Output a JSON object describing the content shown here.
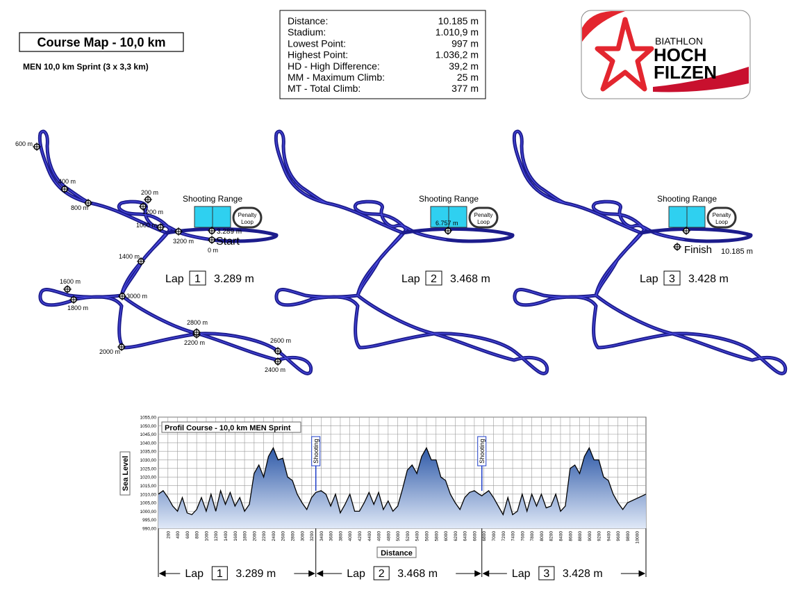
{
  "header": {
    "title": "Course Map - 10,0 km",
    "subtitle": "MEN 10,0 km Sprint (3 x 3,3 km)"
  },
  "stats": [
    [
      "Distance:",
      "10.185 m"
    ],
    [
      "Stadium:",
      "1.010,9 m"
    ],
    [
      "Lowest Point:",
      "997 m"
    ],
    [
      "Highest Point:",
      "1.036,2 m"
    ],
    [
      "HD - High Difference:",
      "39,2 m"
    ],
    [
      "MM - Maximum Climb:",
      "25 m"
    ],
    [
      "MT - Total Climb:",
      "377 m"
    ]
  ],
  "logo": {
    "line1": "BIATHLON",
    "line2": "HOCH",
    "line3": "FILZEN"
  },
  "maps": [
    {
      "range": "Shooting Range",
      "penalty": [
        "Penalty",
        "Loop"
      ],
      "lap": "Lap",
      "lap_number": "1",
      "lap_length": "3.289 m",
      "marks": [
        "600 m",
        "400 m",
        "800 m",
        "200 m",
        "1200 m",
        "1000 m",
        "3200 m",
        "3.289 m",
        "Start",
        "0 m",
        "1400 m",
        "1600 m",
        "1800 m",
        "3000 m",
        "2800 m",
        "2200 m",
        "2000 m",
        "2600 m",
        "2400 m"
      ]
    },
    {
      "range": "Shooting Range",
      "penalty": [
        "Penalty",
        "Loop"
      ],
      "lap": "Lap",
      "lap_number": "2",
      "lap_length": "3.468 m",
      "marks": [
        "6.757 m"
      ]
    },
    {
      "range": "Shooting Range",
      "penalty": [
        "Penalty",
        "Loop"
      ],
      "lap": "Lap",
      "lap_number": "3",
      "lap_length": "3.428 m",
      "marks": [
        "Finish",
        "10.185 m"
      ]
    }
  ],
  "chart_data": {
    "type": "area",
    "title": "Profil Course - 10,0 km MEN Sprint",
    "x_label": "Distance",
    "y_label": "Sea Level",
    "color": "#2f5aa8",
    "x": [
      0,
      100,
      200,
      300,
      400,
      500,
      600,
      700,
      800,
      900,
      1000,
      1100,
      1200,
      1300,
      1400,
      1500,
      1600,
      1700,
      1800,
      1900,
      2000,
      2100,
      2200,
      2300,
      2400,
      2500,
      2600,
      2700,
      2800,
      2900,
      3000,
      3100,
      3200,
      3289,
      3400,
      3500,
      3600,
      3700,
      3800,
      3900,
      4000,
      4100,
      4200,
      4300,
      4400,
      4500,
      4600,
      4700,
      4800,
      4900,
      5000,
      5100,
      5200,
      5300,
      5400,
      5500,
      5600,
      5700,
      5800,
      5900,
      6000,
      6100,
      6200,
      6300,
      6400,
      6500,
      6600,
      6700,
      6757,
      6800,
      6900,
      7000,
      7100,
      7200,
      7300,
      7400,
      7500,
      7600,
      7700,
      7800,
      7900,
      8000,
      8100,
      8200,
      8300,
      8400,
      8500,
      8600,
      8700,
      8800,
      8900,
      9000,
      9100,
      9200,
      9300,
      9400,
      9500,
      9600,
      9700,
      9800,
      10185
    ],
    "values": [
      1010,
      1012,
      1008,
      1003,
      1000,
      1008,
      999,
      998,
      1001,
      1008,
      1000,
      1010,
      1000,
      1012,
      1004,
      1011,
      1003,
      1008,
      1000,
      1004,
      1022,
      1027,
      1020,
      1032,
      1037,
      1030,
      1031,
      1020,
      1018,
      1010,
      1005,
      1001,
      1008,
      1011,
      1012,
      1010,
      1003,
      1010,
      999,
      1004,
      1010,
      1000,
      1000,
      1005,
      1011,
      1004,
      1011,
      1001,
      1006,
      1000,
      1003,
      1013,
      1024,
      1027,
      1022,
      1032,
      1037,
      1030,
      1030,
      1020,
      1018,
      1010,
      1005,
      1001,
      1008,
      1011,
      1012,
      1010,
      1009,
      1010,
      1012,
      1008,
      1003,
      998,
      1008,
      998,
      1000,
      1010,
      1000,
      1010,
      1003,
      1010,
      1002,
      1003,
      1010,
      1000,
      1003,
      1025,
      1027,
      1022,
      1032,
      1037,
      1030,
      1030,
      1020,
      1018,
      1010,
      1005,
      1001,
      1005,
      1010
    ],
    "xlim": [
      0,
      10185
    ],
    "ylim": [
      990,
      1055
    ],
    "xticks": [
      200,
      400,
      600,
      800,
      1000,
      1200,
      1400,
      1600,
      1800,
      2000,
      2200,
      2400,
      2600,
      2800,
      3000,
      3200,
      3400,
      3600,
      3800,
      4000,
      4200,
      4400,
      4600,
      4800,
      5000,
      5200,
      5400,
      5600,
      5800,
      6000,
      6200,
      6400,
      6600,
      6800,
      7000,
      7200,
      7400,
      7600,
      7800,
      8000,
      8200,
      8400,
      8600,
      8800,
      9000,
      9200,
      9400,
      9600,
      9800,
      10000
    ],
    "yticks": [
      {
        "value": 990,
        "label": "990,00"
      },
      {
        "value": 995,
        "label": "995,00"
      },
      {
        "value": 1000,
        "label": "1000,00"
      },
      {
        "value": 1005,
        "label": "1005,00"
      },
      {
        "value": 1010,
        "label": "1010,00"
      },
      {
        "value": 1015,
        "label": "1015,00"
      },
      {
        "value": 1020,
        "label": "1020,00"
      },
      {
        "value": 1025,
        "label": "1025,00"
      },
      {
        "value": 1030,
        "label": "1030,00"
      },
      {
        "value": 1035,
        "label": "1035,00"
      },
      {
        "value": 1040,
        "label": "1040,00"
      },
      {
        "value": 1045,
        "label": "1045,00"
      },
      {
        "value": 1050,
        "label": "1050,00"
      },
      {
        "value": 1055,
        "label": "1055,00"
      }
    ],
    "grid": true,
    "annotations": [
      {
        "label": "Shooting",
        "x": 3289
      },
      {
        "label": "Shooting",
        "x": 6757
      }
    ],
    "laps": [
      {
        "label": "Lap",
        "number": "1",
        "length": "3.289 m"
      },
      {
        "label": "Lap",
        "number": "2",
        "length": "3.468 m"
      },
      {
        "label": "Lap",
        "number": "3",
        "length": "3.428 m"
      }
    ]
  }
}
